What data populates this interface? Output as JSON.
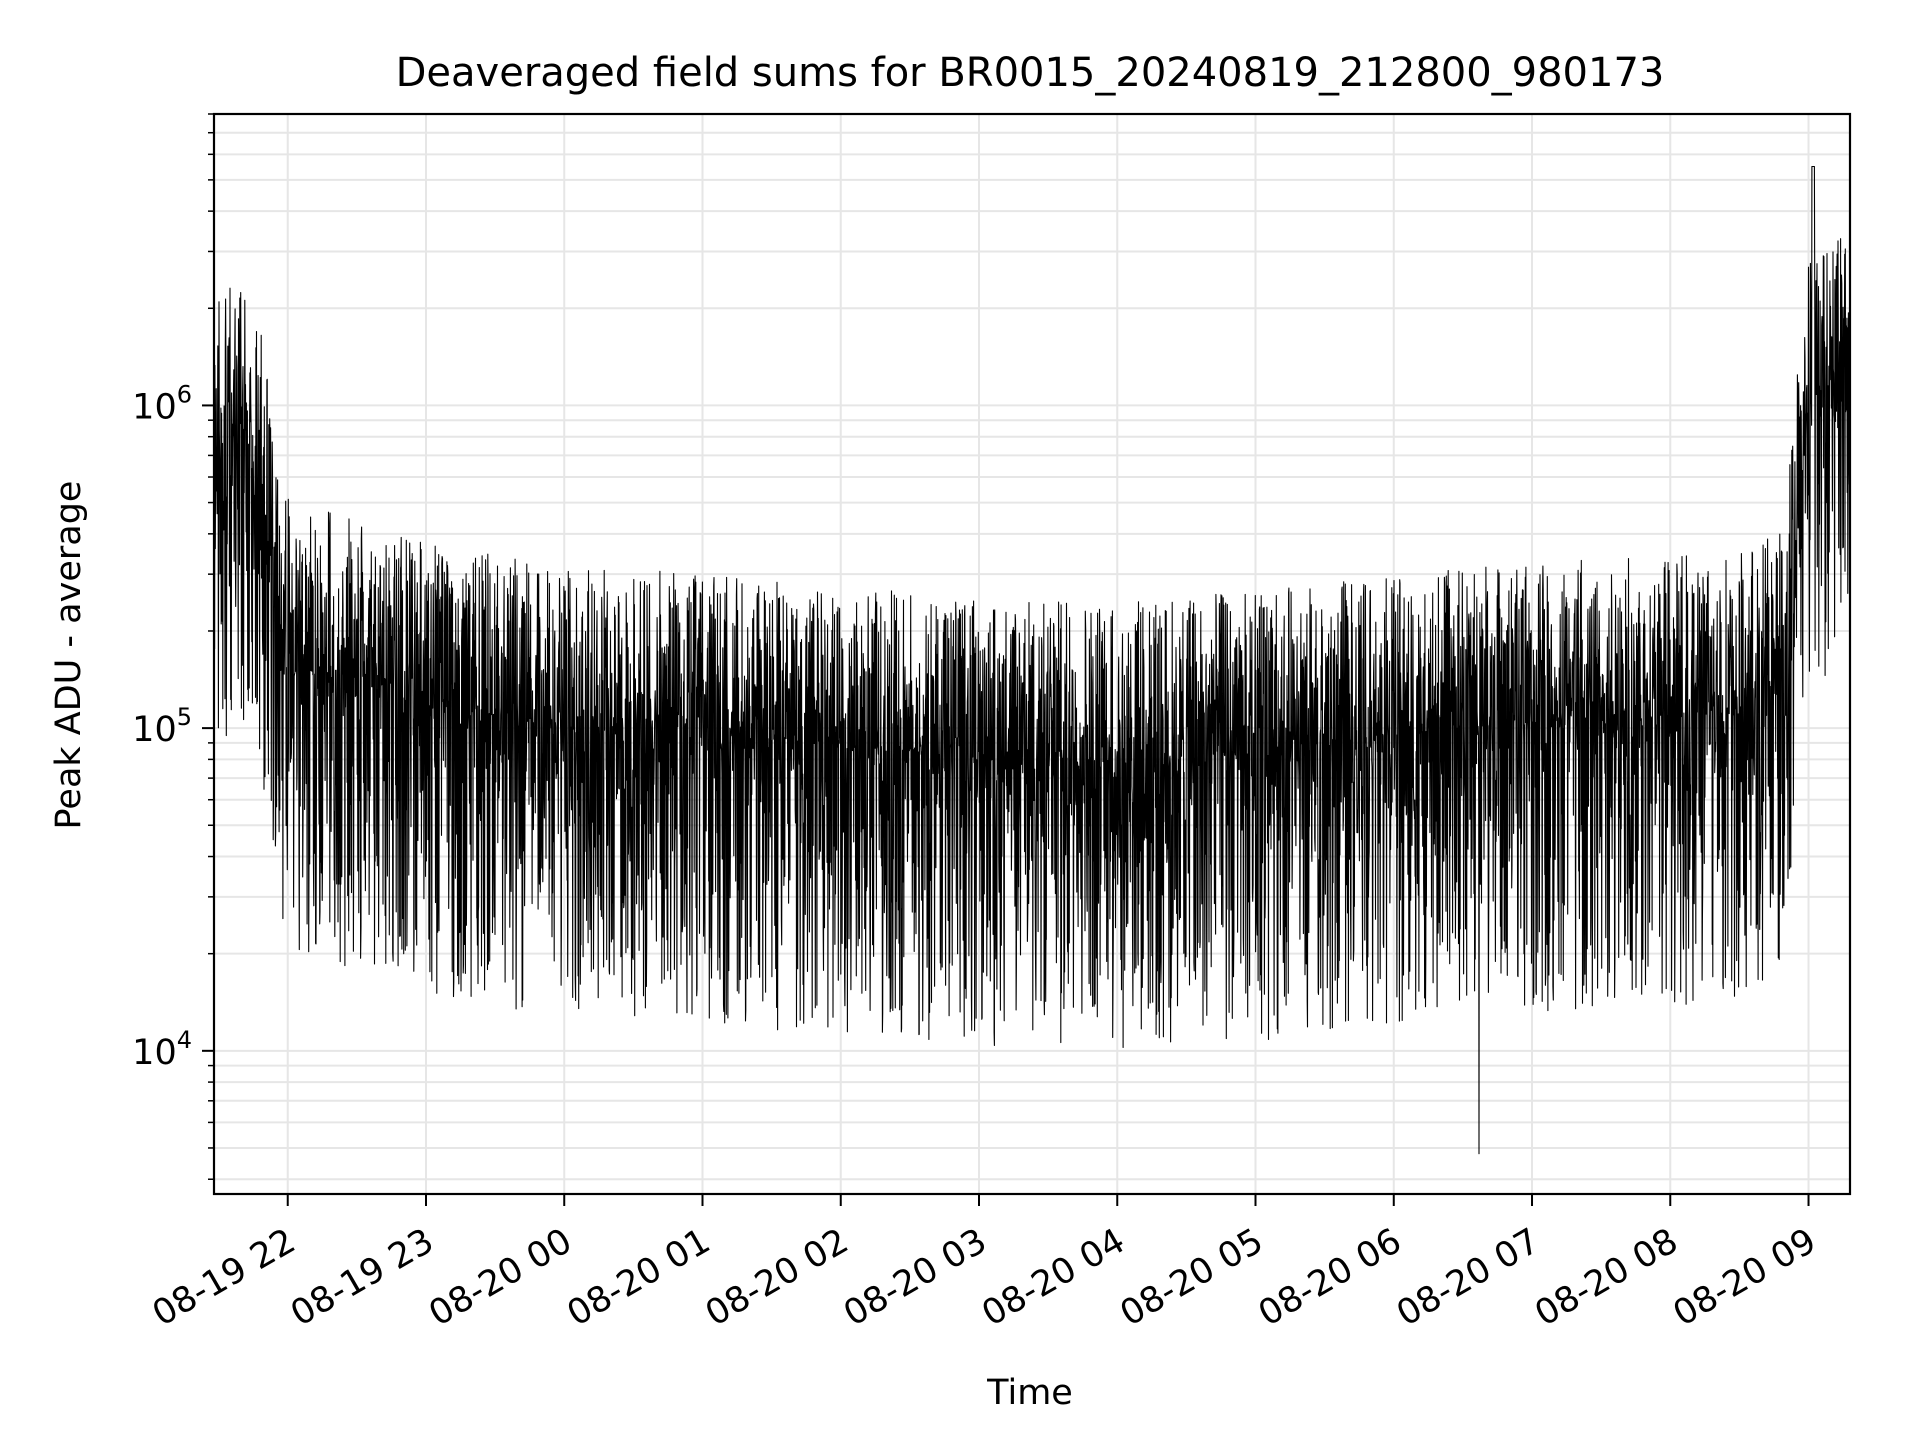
{
  "chart_data": {
    "type": "line",
    "title": "Deaveraged field sums for BR0015_20240819_212800_980173",
    "xlabel": "Time",
    "ylabel": "Peak ADU - average",
    "xscale": "time",
    "yscale": "log",
    "xlim": [
      "2024-08-19 21:28:00",
      "2024-08-20 09:18:00"
    ],
    "ylim": [
      3600,
      8000000
    ],
    "grid": true,
    "line_color": "#000000",
    "grid_color": "#e6e6e6",
    "x_ticks": [
      {
        "value": "2024-08-19 22:00",
        "label": "08-19 22"
      },
      {
        "value": "2024-08-19 23:00",
        "label": "08-19 23"
      },
      {
        "value": "2024-08-20 00:00",
        "label": "08-20 00"
      },
      {
        "value": "2024-08-20 01:00",
        "label": "08-20 01"
      },
      {
        "value": "2024-08-20 02:00",
        "label": "08-20 02"
      },
      {
        "value": "2024-08-20 03:00",
        "label": "08-20 03"
      },
      {
        "value": "2024-08-20 04:00",
        "label": "08-20 04"
      },
      {
        "value": "2024-08-20 05:00",
        "label": "08-20 05"
      },
      {
        "value": "2024-08-20 06:00",
        "label": "08-20 06"
      },
      {
        "value": "2024-08-20 07:00",
        "label": "08-20 07"
      },
      {
        "value": "2024-08-20 08:00",
        "label": "08-20 08"
      },
      {
        "value": "2024-08-20 09:00",
        "label": "08-20 09"
      }
    ],
    "y_ticks": [
      {
        "value": 10000,
        "base": "10",
        "exp": "4"
      },
      {
        "value": 100000,
        "base": "10",
        "exp": "5"
      },
      {
        "value": 1000000,
        "base": "10",
        "exp": "6"
      }
    ],
    "series": [
      {
        "x": [
          "2024-08-19 21:28",
          "2024-08-19 21:40",
          "2024-08-19 21:50",
          "2024-08-19 21:56",
          "2024-08-19 22:05",
          "2024-08-19 22:30",
          "2024-08-19 23:00",
          "2024-08-19 23:30",
          "2024-08-20 00:00",
          "2024-08-20 00:30",
          "2024-08-20 01:00",
          "2024-08-20 01:30",
          "2024-08-20 02:00",
          "2024-08-20 02:30",
          "2024-08-20 03:00",
          "2024-08-20 03:30",
          "2024-08-20 04:00",
          "2024-08-20 04:30",
          "2024-08-20 05:00",
          "2024-08-20 05:30",
          "2024-08-20 06:00",
          "2024-08-20 06:30",
          "2024-08-20 07:00",
          "2024-08-20 07:30",
          "2024-08-20 08:00",
          "2024-08-20 08:30",
          "2024-08-20 08:48",
          "2024-08-20 08:54",
          "2024-08-20 09:00",
          "2024-08-20 09:10",
          "2024-08-20 09:18"
        ],
        "y": [
          700000,
          800000,
          500000,
          180000,
          160000,
          140000,
          120000,
          110000,
          100000,
          100000,
          95000,
          92000,
          88000,
          85000,
          80000,
          80000,
          80000,
          82000,
          85000,
          90000,
          95000,
          100000,
          105000,
          108000,
          110000,
          110000,
          140000,
          350000,
          1000000,
          1200000,
          1250000
        ],
        "noise_dex_typical": 0.45,
        "max_peak": {
          "x": "2024-08-20 09:02",
          "y": 5500000
        },
        "min_dip": {
          "x": "2024-08-20 06:37",
          "y": 4800
        }
      }
    ]
  }
}
